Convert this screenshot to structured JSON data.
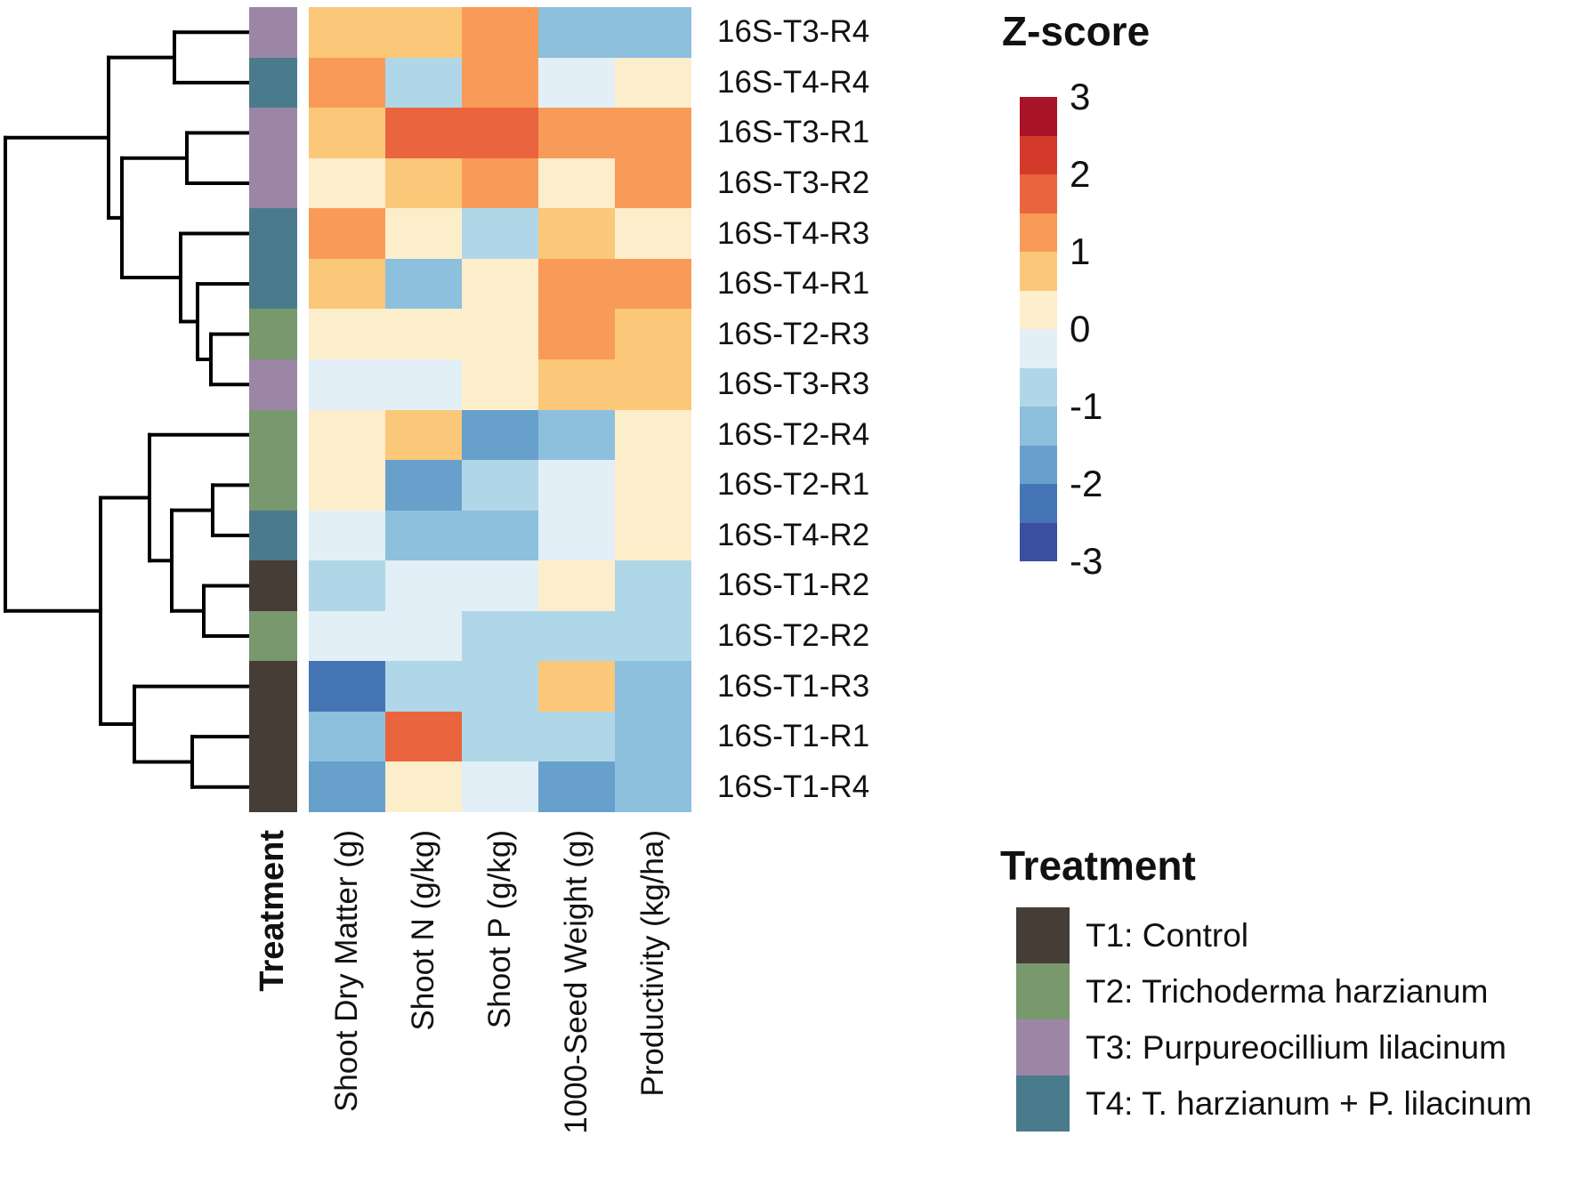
{
  "chart_data": {
    "type": "heatmap",
    "legend_title": "Z-score",
    "annotation_title": "Treatment",
    "columns": [
      "Shoot Dry Matter (g)",
      "Shoot N (g/kg)",
      "Shoot P (g/kg)",
      "1000-Seed Weight (g)",
      "Productivity (kg/ha)"
    ],
    "rows": [
      "16S-T3-R4",
      "16S-T4-R4",
      "16S-T3-R1",
      "16S-T3-R2",
      "16S-T4-R3",
      "16S-T4-R1",
      "16S-T2-R3",
      "16S-T3-R3",
      "16S-T2-R4",
      "16S-T2-R1",
      "16S-T4-R2",
      "16S-T1-R2",
      "16S-T2-R2",
      "16S-T1-R3",
      "16S-T1-R1",
      "16S-T1-R4"
    ],
    "row_treatments": [
      "T3",
      "T4",
      "T3",
      "T3",
      "T4",
      "T4",
      "T2",
      "T3",
      "T2",
      "T2",
      "T4",
      "T1",
      "T2",
      "T1",
      "T1",
      "T1"
    ],
    "values": [
      [
        0.75,
        0.75,
        1.25,
        -1.25,
        -1.25
      ],
      [
        1.25,
        -0.75,
        1.25,
        -0.25,
        0.25
      ],
      [
        0.75,
        1.75,
        1.75,
        1.25,
        1.25
      ],
      [
        0.25,
        0.75,
        1.25,
        0.25,
        1.25
      ],
      [
        1.25,
        0.25,
        -0.75,
        0.75,
        0.25
      ],
      [
        0.75,
        -1.25,
        0.25,
        1.25,
        1.25
      ],
      [
        0.25,
        0.25,
        0.25,
        1.25,
        0.75
      ],
      [
        -0.25,
        -0.25,
        0.25,
        0.75,
        0.75
      ],
      [
        0.25,
        0.75,
        -1.75,
        -1.25,
        0.25
      ],
      [
        0.25,
        -1.75,
        -0.75,
        -0.25,
        0.25
      ],
      [
        -0.25,
        -1.25,
        -1.25,
        -0.25,
        0.25
      ],
      [
        -0.75,
        -0.25,
        -0.25,
        0.25,
        -0.75
      ],
      [
        -0.25,
        -0.25,
        -0.75,
        -0.75,
        -0.75
      ],
      [
        -2.25,
        -0.75,
        -0.75,
        0.75,
        -1.25
      ],
      [
        -1.25,
        1.75,
        -0.75,
        -0.75,
        -1.25
      ],
      [
        -1.75,
        0.25,
        -0.25,
        -1.75,
        -1.25
      ]
    ],
    "zlim": [
      -3,
      3
    ],
    "palette_low_to_high": [
      "#3a4f9f",
      "#4575b4",
      "#68a0cc",
      "#8cc0dc",
      "#b0d7e8",
      "#e2eff6",
      "#fdeecb",
      "#fbc778",
      "#f99b58",
      "#ea643e",
      "#d43a2a",
      "#a91328"
    ],
    "row_dendrogram_merges": [
      [
        "L1",
        "L2",
        196
      ],
      [
        "L3",
        "L4",
        210
      ],
      [
        "L7",
        "L8",
        237
      ],
      [
        "L6",
        "M3",
        222
      ],
      [
        "L5",
        "M4",
        203
      ],
      [
        "M2",
        "M5",
        137
      ],
      [
        "M1",
        "M6",
        122
      ],
      [
        "L10",
        "L11",
        239
      ],
      [
        "L12",
        "L13",
        229
      ],
      [
        "M8",
        "M9",
        193
      ],
      [
        "L9",
        "M10",
        168
      ],
      [
        "L15",
        "L16",
        216
      ],
      [
        "L14",
        "M12",
        151
      ],
      [
        "M11",
        "M13",
        113
      ],
      [
        "M7",
        "M14",
        6
      ]
    ]
  },
  "annotation": {
    "label": "Treatment",
    "colors": {
      "T1": "#463d37",
      "T2": "#78986e",
      "T3": "#9c86a6",
      "T4": "#4a7b8d"
    }
  },
  "zscore_legend": {
    "title": "Z-score",
    "ticks": [
      "3",
      "2",
      "1",
      "0",
      "-1",
      "-2",
      "-3"
    ]
  },
  "treatment_legend": {
    "title": "Treatment",
    "items": [
      {
        "code": "T1",
        "label": "T1: Control"
      },
      {
        "code": "T2",
        "label": "T2: Trichoderma harzianum"
      },
      {
        "code": "T3",
        "label": "T3: Purpureocillium lilacinum"
      },
      {
        "code": "T4",
        "label": "T4: T. harzianum + P. lilacinum"
      }
    ]
  }
}
